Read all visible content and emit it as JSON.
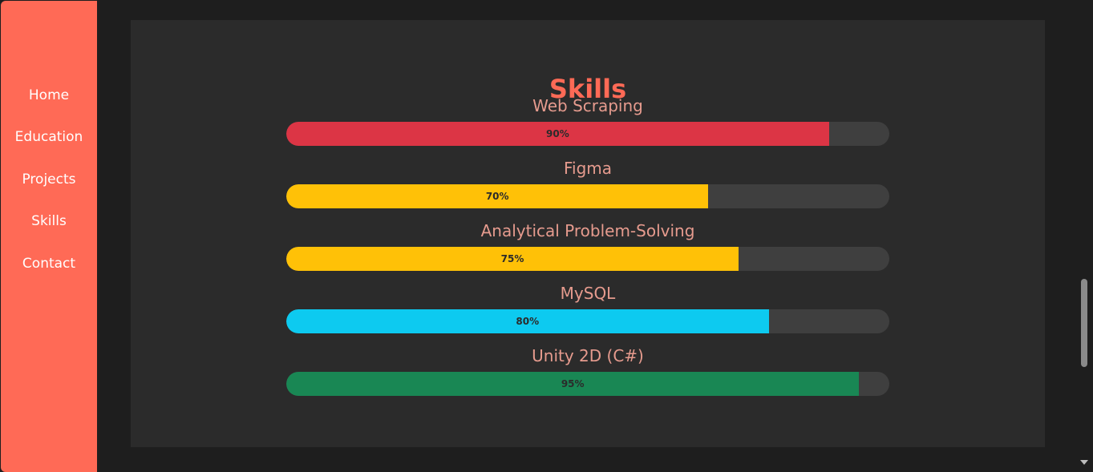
{
  "nav": {
    "items": [
      {
        "label": "Home"
      },
      {
        "label": "Education"
      },
      {
        "label": "Projects"
      },
      {
        "label": "Skills"
      },
      {
        "label": "Contact"
      }
    ]
  },
  "skills": {
    "title": "Skills",
    "items": [
      {
        "name": "Web Scraping",
        "percent_label": "90%",
        "percent": 90,
        "color": "#dc3545"
      },
      {
        "name": "Figma",
        "percent_label": "70%",
        "percent": 70,
        "color": "#ffc107"
      },
      {
        "name": "Analytical Problem-Solving",
        "percent_label": "75%",
        "percent": 75,
        "color": "#ffc107"
      },
      {
        "name": "MySQL",
        "percent_label": "80%",
        "percent": 80,
        "color": "#0dcaf0"
      },
      {
        "name": "Unity 2D (C#)",
        "percent_label": "95%",
        "percent": 95,
        "color": "#198754"
      }
    ]
  },
  "colors": {
    "accent": "#ff6a56",
    "panel": "#2b2b2b",
    "background": "#1e1e1e"
  }
}
